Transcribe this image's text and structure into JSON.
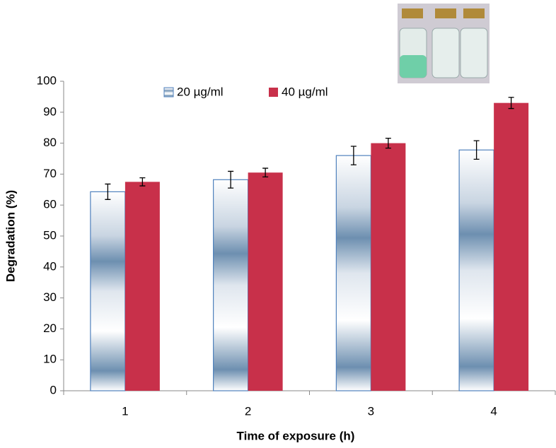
{
  "chart_data": {
    "type": "bar",
    "x_label": "Time of exposure (h)",
    "y_label": "Degradation (%)",
    "categories": [
      "1",
      "2",
      "3",
      "4"
    ],
    "series": [
      {
        "name": "20 µg/ml",
        "color": "#4f81bd",
        "values": [
          64.3,
          68.2,
          76,
          77.8
        ],
        "errors": [
          2.5,
          2.7,
          3,
          3
        ]
      },
      {
        "name": "40 µg/ml",
        "color": "#c8304a",
        "values": [
          67.5,
          70.5,
          80,
          93
        ],
        "errors": [
          1.3,
          1.4,
          1.6,
          1.8
        ]
      }
    ],
    "ylim": [
      0,
      100
    ],
    "yticks": [
      0,
      10,
      20,
      30,
      40,
      50,
      60,
      70,
      80,
      90,
      100
    ],
    "grid": false
  }
}
